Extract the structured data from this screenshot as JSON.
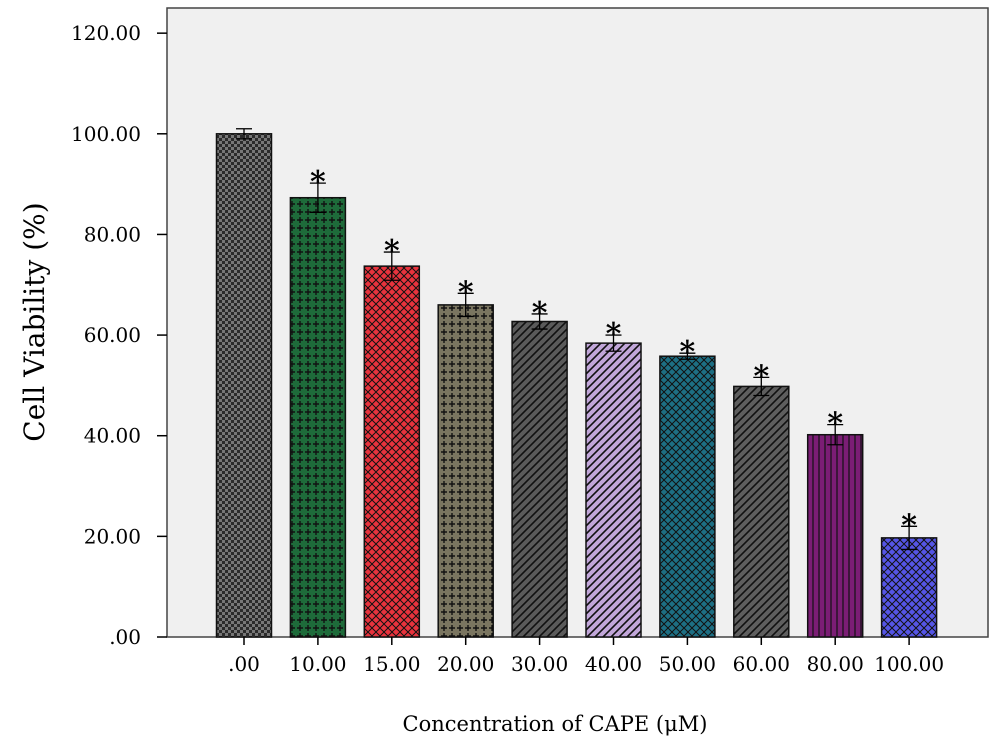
{
  "chart_data": {
    "type": "bar",
    "xlabel": "Concentration of CAPE (μM)",
    "ylabel": "Cell Viability (%)",
    "ylim": [
      0,
      125
    ],
    "yticks": [
      ".00",
      "20.00",
      "40.00",
      "60.00",
      "80.00",
      "100.00",
      "120.00"
    ],
    "ytick_values": [
      0,
      20,
      40,
      60,
      80,
      100,
      120
    ],
    "categories": [
      ".00",
      "10.00",
      "15.00",
      "20.00",
      "30.00",
      "40.00",
      "50.00",
      "60.00",
      "80.00",
      "100.00"
    ],
    "values": [
      100.0,
      87.3,
      73.7,
      66.0,
      62.7,
      58.4,
      55.8,
      49.8,
      40.2,
      19.7
    ],
    "errors": [
      1.0,
      2.9,
      2.8,
      2.3,
      1.5,
      1.6,
      0.6,
      1.8,
      2.0,
      2.3
    ],
    "significance": [
      "",
      "*",
      "*",
      "*",
      "*",
      "*",
      "*",
      "*",
      "*",
      "*"
    ],
    "grid": false,
    "legend": "none",
    "plot_background": "#f0f0f0",
    "bar_colors": [
      "#2b2b2b",
      "#1e6b3a",
      "#e8333d",
      "#7a7560",
      "#5a5a5a",
      "#c1a6d9",
      "#1d6f84",
      "#5e5e5e",
      "#7b1d75",
      "#5555e6"
    ],
    "bar_patterns": [
      "checker",
      "plus",
      "crosshatch",
      "plus",
      "diagonal",
      "diagonal",
      "crosshatch",
      "diagonal",
      "vertical",
      "crosshatch"
    ]
  }
}
